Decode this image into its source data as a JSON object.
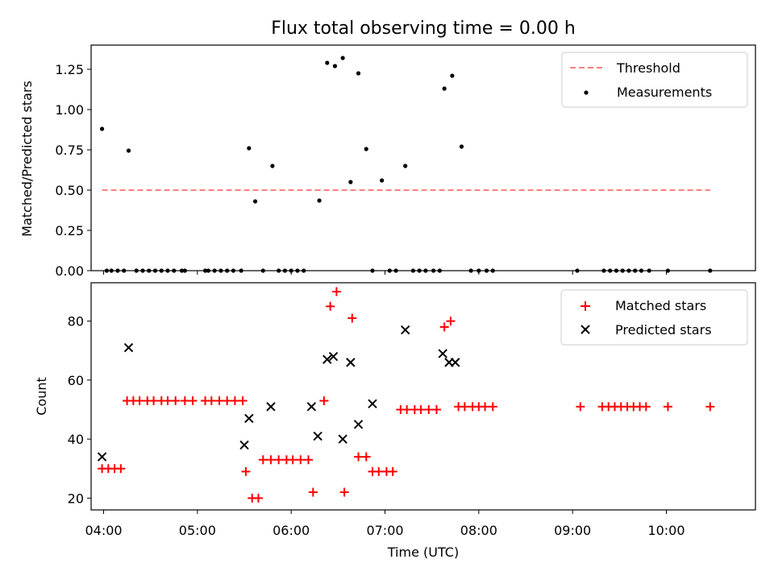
{
  "chart_data": [
    {
      "type": "scatter",
      "title": "Flux total observing time = 0.00 h",
      "xlabel": "",
      "ylabel": "Matched/Predicted stars",
      "xlim": [
        "03:52",
        "10:57"
      ],
      "ylim": [
        0,
        1.4
      ],
      "yticks": [
        "0.00",
        "0.25",
        "0.50",
        "0.75",
        "1.00",
        "1.25"
      ],
      "grid": false,
      "legend_position": "top-right",
      "threshold": {
        "name": "Threshold",
        "value": 0.5,
        "x": [
          "03:59",
          "10:28"
        ],
        "color": "#ff7f7f"
      },
      "series": [
        {
          "name": "Measurements",
          "color": "#000000",
          "points": [
            [
              "03:59",
              0.88
            ],
            [
              "04:02",
              0
            ],
            [
              "04:05",
              0
            ],
            [
              "04:09",
              0
            ],
            [
              "04:13",
              0
            ],
            [
              "04:16",
              0.745
            ],
            [
              "04:21",
              0
            ],
            [
              "04:25",
              0
            ],
            [
              "04:29",
              0
            ],
            [
              "04:33",
              0
            ],
            [
              "04:37",
              0
            ],
            [
              "04:41",
              0
            ],
            [
              "04:45",
              0
            ],
            [
              "04:50",
              0
            ],
            [
              "04:52",
              0
            ],
            [
              "05:05",
              0
            ],
            [
              "05:07",
              0
            ],
            [
              "05:11",
              0
            ],
            [
              "05:15",
              0
            ],
            [
              "05:19",
              0
            ],
            [
              "05:23",
              0
            ],
            [
              "05:28",
              0
            ],
            [
              "05:33",
              0.76
            ],
            [
              "05:37",
              0.43
            ],
            [
              "05:42",
              0
            ],
            [
              "05:48",
              0.65
            ],
            [
              "05:52",
              0
            ],
            [
              "05:56",
              0
            ],
            [
              "06:00",
              0
            ],
            [
              "06:04",
              0
            ],
            [
              "06:08",
              0
            ],
            [
              "06:18",
              0.435
            ],
            [
              "06:23",
              1.29
            ],
            [
              "06:28",
              1.27
            ],
            [
              "06:33",
              1.32
            ],
            [
              "06:38",
              0.55
            ],
            [
              "06:43",
              1.225
            ],
            [
              "06:48",
              0.755
            ],
            [
              "06:52",
              0
            ],
            [
              "06:58",
              0.56
            ],
            [
              "07:03",
              0
            ],
            [
              "07:07",
              0
            ],
            [
              "07:13",
              0.65
            ],
            [
              "07:18",
              0
            ],
            [
              "07:22",
              0
            ],
            [
              "07:26",
              0
            ],
            [
              "07:31",
              0
            ],
            [
              "07:35",
              0
            ],
            [
              "07:38",
              1.13
            ],
            [
              "07:43",
              1.21
            ],
            [
              "07:49",
              0.77
            ],
            [
              "07:55",
              0
            ],
            [
              "08:00",
              0
            ],
            [
              "08:05",
              0
            ],
            [
              "08:09",
              0
            ],
            [
              "09:03",
              0
            ],
            [
              "09:20",
              0
            ],
            [
              "09:24",
              0
            ],
            [
              "09:28",
              0
            ],
            [
              "09:32",
              0
            ],
            [
              "09:36",
              0
            ],
            [
              "09:40",
              0
            ],
            [
              "09:44",
              0
            ],
            [
              "09:49",
              0
            ],
            [
              "10:01",
              0
            ],
            [
              "10:28",
              0
            ]
          ]
        }
      ]
    },
    {
      "type": "scatter",
      "title": "",
      "xlabel": "Time (UTC)",
      "ylabel": "Count",
      "xlim": [
        "03:52",
        "10:57"
      ],
      "ylim": [
        16,
        93
      ],
      "yticks": [
        "20",
        "40",
        "60",
        "80"
      ],
      "xticks": [
        "04:00",
        "05:00",
        "06:00",
        "07:00",
        "08:00",
        "09:00",
        "10:00"
      ],
      "grid": false,
      "legend_position": "top-right",
      "series": [
        {
          "name": "Matched stars",
          "marker": "plus",
          "color": "#ff0000",
          "points": [
            [
              "03:59",
              30
            ],
            [
              "04:03",
              30
            ],
            [
              "04:07",
              30
            ],
            [
              "04:11",
              30
            ],
            [
              "04:15",
              53
            ],
            [
              "04:19",
              53
            ],
            [
              "04:23",
              53
            ],
            [
              "04:28",
              53
            ],
            [
              "04:32",
              53
            ],
            [
              "04:37",
              53
            ],
            [
              "04:41",
              53
            ],
            [
              "04:46",
              53
            ],
            [
              "04:52",
              53
            ],
            [
              "04:57",
              53
            ],
            [
              "05:05",
              53
            ],
            [
              "05:09",
              53
            ],
            [
              "05:14",
              53
            ],
            [
              "05:19",
              53
            ],
            [
              "05:24",
              53
            ],
            [
              "05:29",
              53
            ],
            [
              "05:31",
              29
            ],
            [
              "05:35",
              20
            ],
            [
              "05:39",
              20
            ],
            [
              "05:42",
              33
            ],
            [
              "05:47",
              33
            ],
            [
              "05:52",
              33
            ],
            [
              "05:57",
              33
            ],
            [
              "06:01",
              33
            ],
            [
              "06:06",
              33
            ],
            [
              "06:11",
              33
            ],
            [
              "06:14",
              22
            ],
            [
              "06:21",
              53
            ],
            [
              "06:25",
              85
            ],
            [
              "06:29",
              90
            ],
            [
              "06:34",
              22
            ],
            [
              "06:39",
              81
            ],
            [
              "06:43",
              34
            ],
            [
              "06:48",
              34
            ],
            [
              "06:52",
              29
            ],
            [
              "06:56",
              29
            ],
            [
              "07:01",
              29
            ],
            [
              "07:05",
              29
            ],
            [
              "07:10",
              50
            ],
            [
              "07:14",
              50
            ],
            [
              "07:19",
              50
            ],
            [
              "07:23",
              50
            ],
            [
              "07:28",
              50
            ],
            [
              "07:33",
              50
            ],
            [
              "07:38",
              78
            ],
            [
              "07:42",
              80
            ],
            [
              "07:47",
              51
            ],
            [
              "07:51",
              51
            ],
            [
              "07:56",
              51
            ],
            [
              "08:00",
              51
            ],
            [
              "08:04",
              51
            ],
            [
              "08:09",
              51
            ],
            [
              "09:05",
              51
            ],
            [
              "09:19",
              51
            ],
            [
              "09:23",
              51
            ],
            [
              "09:27",
              51
            ],
            [
              "09:31",
              51
            ],
            [
              "09:35",
              51
            ],
            [
              "09:39",
              51
            ],
            [
              "09:43",
              51
            ],
            [
              "09:47",
              51
            ],
            [
              "10:01",
              51
            ],
            [
              "10:28",
              51
            ]
          ]
        },
        {
          "name": "Predicted stars",
          "marker": "x",
          "color": "#000000",
          "points": [
            [
              "03:59",
              34
            ],
            [
              "04:16",
              71
            ],
            [
              "05:30",
              38
            ],
            [
              "05:33",
              47
            ],
            [
              "05:47",
              51
            ],
            [
              "06:13",
              51
            ],
            [
              "06:17",
              41
            ],
            [
              "06:23",
              67
            ],
            [
              "06:27",
              68
            ],
            [
              "06:33",
              40
            ],
            [
              "06:38",
              66
            ],
            [
              "06:43",
              45
            ],
            [
              "06:52",
              52
            ],
            [
              "07:13",
              77
            ],
            [
              "07:37",
              69
            ],
            [
              "07:41",
              66
            ],
            [
              "07:45",
              66
            ]
          ]
        }
      ]
    }
  ]
}
